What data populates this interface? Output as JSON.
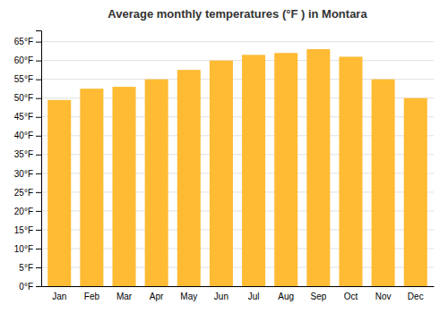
{
  "chart_data": {
    "type": "bar",
    "title": "Average monthly temperatures (°F ) in Montara",
    "categories": [
      "Jan",
      "Feb",
      "Mar",
      "Apr",
      "May",
      "Jun",
      "Jul",
      "Aug",
      "Sep",
      "Oct",
      "Nov",
      "Dec"
    ],
    "values": [
      49.5,
      52.5,
      53.0,
      55.0,
      57.5,
      60.0,
      61.5,
      62.0,
      63.0,
      61.0,
      55.0,
      50.0
    ],
    "color": "#FFBB33",
    "ylim": [
      0,
      68
    ],
    "yticks": [
      {
        "value": 0,
        "label": "0°F"
      },
      {
        "value": 5,
        "label": "5°F"
      },
      {
        "value": 10,
        "label": "10°F"
      },
      {
        "value": 15,
        "label": "15°F"
      },
      {
        "value": 20,
        "label": "20°F"
      },
      {
        "value": 25,
        "label": "25°F"
      },
      {
        "value": 30,
        "label": "30°F"
      },
      {
        "value": 35,
        "label": "35°F"
      },
      {
        "value": 40,
        "label": "40°F"
      },
      {
        "value": 45,
        "label": "45°F"
      },
      {
        "value": 50,
        "label": "50°F"
      },
      {
        "value": 55,
        "label": "55°F"
      },
      {
        "value": 60,
        "label": "60°F"
      },
      {
        "value": 65,
        "label": "65°F"
      }
    ],
    "grid": true
  }
}
